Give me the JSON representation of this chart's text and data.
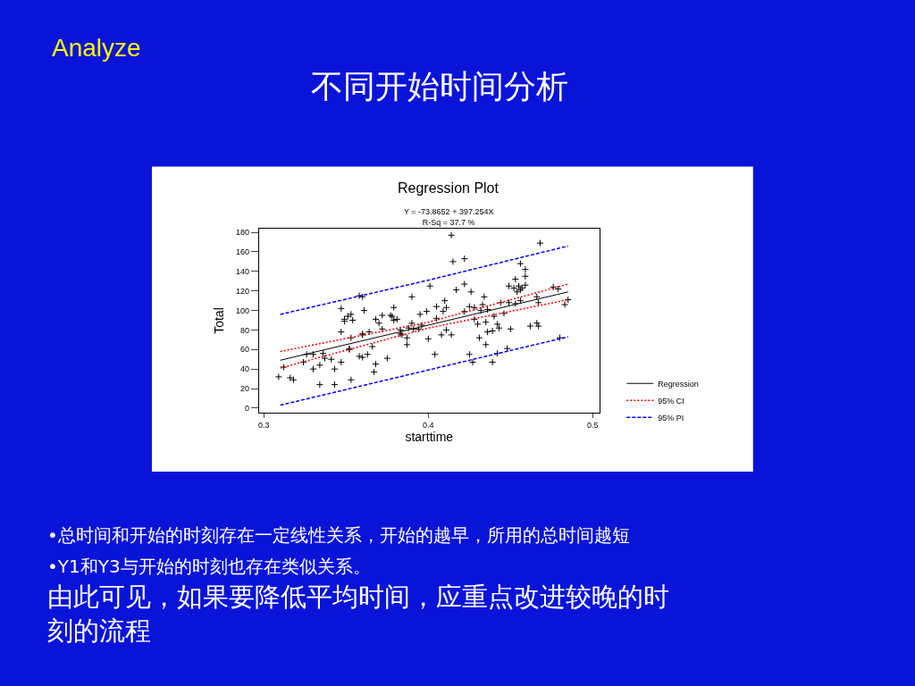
{
  "chart_data": {
    "type": "scatter",
    "title": "Regression Plot",
    "subtitle": "Y = -73.8652 + 397.254X\nR-Sq = 37.7 %",
    "xlabel": "starttime",
    "ylabel": "Total",
    "annotations": [
      "Analyze",
      "不同开始时间分析",
      "•总时间和开始的时刻存在一定线性关系，开始的越早，所用的总时间越短",
      "•Y1和Y3与开始的时刻也存在类似关系。",
      "由此可见，如果要降低平均时间，应重点改进较晚的时刻的流程"
    ],
    "xlim": [
      0.297,
      0.504
    ],
    "ylim": [
      -5,
      184
    ],
    "xticks": [
      0.3,
      0.4,
      0.5
    ],
    "yticks": [
      0,
      20,
      40,
      60,
      80,
      100,
      120,
      140,
      160,
      180
    ],
    "grid": false,
    "legend": "right",
    "series": [
      {
        "color": "#000000",
        "marker": "cross",
        "x": [
          0.309,
          0.316,
          0.318,
          0.312,
          0.324,
          0.326,
          0.33,
          0.33,
          0.334,
          0.334,
          0.336,
          0.337,
          0.341,
          0.343,
          0.343,
          0.347,
          0.347,
          0.347,
          0.349,
          0.349,
          0.351,
          0.353,
          0.354,
          0.352,
          0.352,
          0.353,
          0.353,
          0.358,
          0.36,
          0.36,
          0.36,
          0.358,
          0.36,
          0.361,
          0.363,
          0.364,
          0.366,
          0.367,
          0.368,
          0.368,
          0.37,
          0.372,
          0.372,
          0.375,
          0.377,
          0.379,
          0.378,
          0.379,
          0.381,
          0.383,
          0.383,
          0.384,
          0.387,
          0.387,
          0.388,
          0.39,
          0.39,
          0.391,
          0.394,
          0.395,
          0.396,
          0.399,
          0.4,
          0.401,
          0.404,
          0.405,
          0.405,
          0.408,
          0.409,
          0.41,
          0.411,
          0.411,
          0.414,
          0.414,
          0.415,
          0.417,
          0.422,
          0.422,
          0.422,
          0.425,
          0.425,
          0.426,
          0.427,
          0.428,
          0.428,
          0.43,
          0.431,
          0.432,
          0.433,
          0.434,
          0.435,
          0.435,
          0.436,
          0.436,
          0.439,
          0.439,
          0.44,
          0.442,
          0.442,
          0.443,
          0.444,
          0.446,
          0.448,
          0.449,
          0.449,
          0.45,
          0.452,
          0.453,
          0.453,
          0.454,
          0.455,
          0.456,
          0.456,
          0.456,
          0.457,
          0.459,
          0.459,
          0.459,
          0.462,
          0.466,
          0.467,
          0.466,
          0.467,
          0.468,
          0.476,
          0.479,
          0.48,
          0.483,
          0.485
        ],
        "values": [
          32,
          31,
          29,
          42,
          47,
          55,
          40,
          55,
          24,
          44,
          56,
          51,
          50,
          40,
          24,
          102,
          47,
          78,
          91,
          89,
          94,
          96,
          90,
          60,
          61,
          72,
          29,
          115,
          114,
          75,
          76,
          53,
          52,
          100,
          55,
          78,
          63,
          37,
          45,
          91,
          87,
          95,
          81,
          51,
          95,
          103,
          94,
          90,
          91,
          80,
          76,
          75,
          65,
          72,
          82,
          114,
          87,
          81,
          81,
          96,
          85,
          99,
          71,
          125,
          55,
          92,
          104,
          75,
          99,
          110,
          103,
          80,
          75,
          177,
          150,
          121,
          153,
          127,
          99,
          55,
          104,
          119,
          47,
          91,
          103,
          86,
          72,
          100,
          106,
          114,
          65,
          88,
          78,
          101,
          47,
          79,
          94,
          86,
          56,
          82,
          108,
          97,
          61,
          125,
          108,
          81,
          123,
          132,
          107,
          119,
          125,
          148,
          121,
          110,
          123,
          142,
          135,
          126,
          84,
          87,
          84,
          114,
          108,
          169,
          124,
          122,
          72,
          106,
          111
        ]
      },
      {
        "type": "line",
        "name": "Regression",
        "color": "#000000",
        "line_style": "solid",
        "x": [
          0.31,
          0.485
        ],
        "values": [
          49,
          119
        ]
      },
      {
        "type": "line",
        "name": "95% CI",
        "color": "#ff0000",
        "line_style": "dotted",
        "x": [
          0.31,
          0.4,
          0.485
        ],
        "values": [
          58,
          88,
          127
        ]
      },
      {
        "type": "line",
        "color": "#ff0000",
        "line_style": "dotted",
        "x": [
          0.31,
          0.4,
          0.485
        ],
        "values": [
          41,
          82,
          111
        ]
      },
      {
        "type": "line",
        "name": "95% PI",
        "color": "#0000ff",
        "line_style": "dashed",
        "x": [
          0.31,
          0.4,
          0.485
        ],
        "values": [
          96,
          131,
          166
        ]
      },
      {
        "type": "line",
        "color": "#0000ff",
        "line_style": "dashed",
        "x": [
          0.31,
          0.4,
          0.485
        ],
        "values": [
          3,
          39,
          73
        ]
      }
    ]
  }
}
